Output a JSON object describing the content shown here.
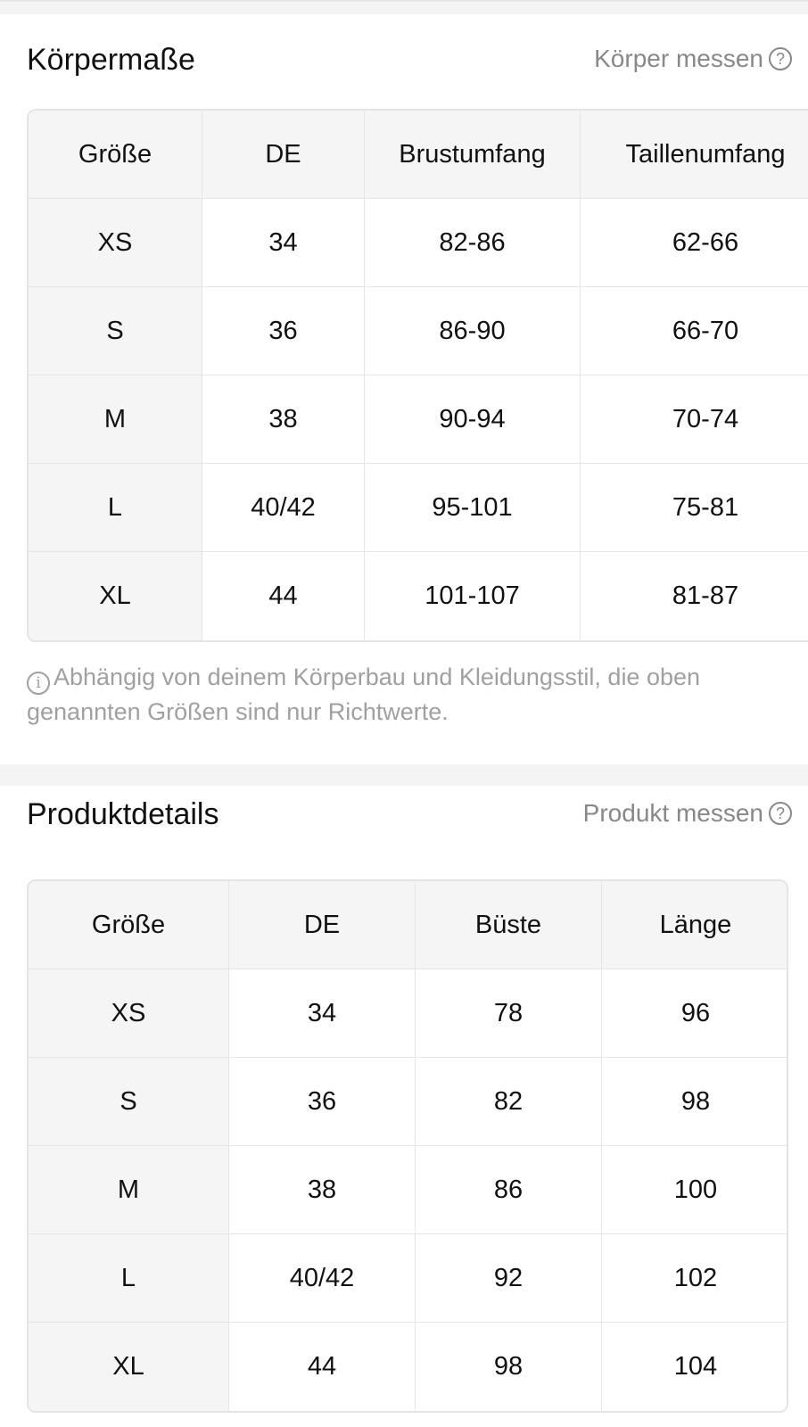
{
  "body_measurements": {
    "title": "Körpermaße",
    "link": "Körper messen",
    "columns": [
      "Größe",
      "DE",
      "Brustumfang",
      "Taillenumfang"
    ],
    "rows": [
      [
        "XS",
        "34",
        "82-86",
        "62-66"
      ],
      [
        "S",
        "36",
        "86-90",
        "66-70"
      ],
      [
        "M",
        "38",
        "90-94",
        "70-74"
      ],
      [
        "L",
        "40/42",
        "95-101",
        "75-81"
      ],
      [
        "XL",
        "44",
        "101-107",
        "81-87"
      ]
    ],
    "note": "Abhängig von deinem Körperbau und Kleidungsstil, die oben genannten Größen sind nur Richtwerte."
  },
  "product_details": {
    "title": "Produktdetails",
    "link": "Produkt messen",
    "columns": [
      "Größe",
      "DE",
      "Büste",
      "Länge"
    ],
    "rows": [
      [
        "XS",
        "34",
        "78",
        "96"
      ],
      [
        "S",
        "36",
        "82",
        "98"
      ],
      [
        "M",
        "38",
        "86",
        "100"
      ],
      [
        "L",
        "40/42",
        "92",
        "102"
      ],
      [
        "XL",
        "44",
        "98",
        "104"
      ]
    ]
  }
}
